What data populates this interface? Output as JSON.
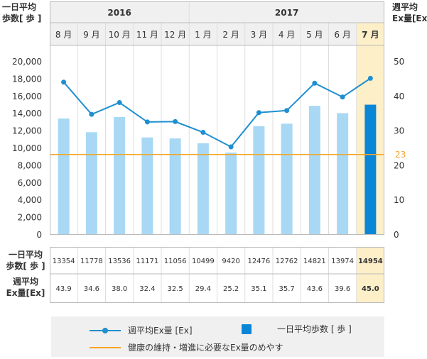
{
  "chart_data": {
    "type": "bar",
    "years": [
      {
        "label": "2016",
        "span": 5
      },
      {
        "label": "2017",
        "span": 7
      }
    ],
    "categories": [
      "8 月",
      "9 月",
      "10 月",
      "11 月",
      "12 月",
      "1 月",
      "2 月",
      "3 月",
      "4 月",
      "5 月",
      "6 月",
      "7 月"
    ],
    "highlight_index": 11,
    "left_axis": {
      "label_lines": [
        "一日平均",
        "歩数[ 歩 ]"
      ],
      "ylim": [
        0,
        20000
      ],
      "ticks": [
        "0",
        "2,000",
        "4,000",
        "6,000",
        "8,000",
        "10,000",
        "12,000",
        "14,000",
        "16,000",
        "18,000",
        "20,000"
      ]
    },
    "right_axis": {
      "label_lines": [
        "週平均",
        "Ex量[Ex]"
      ],
      "ylim": [
        0,
        50
      ],
      "ticks": [
        "0",
        "10",
        "20",
        "30",
        "40",
        "50"
      ]
    },
    "series": [
      {
        "name": "一日平均歩数 [ 歩 ]",
        "type": "bar",
        "axis": "left",
        "color": "#a8d8f4",
        "highlight_color": "#0a86d6",
        "values": [
          13354,
          11778,
          13536,
          11171,
          11056,
          10499,
          9420,
          12476,
          12762,
          14821,
          13974,
          14954
        ]
      },
      {
        "name": "週平均Ex量 [Ex]",
        "type": "line",
        "axis": "right",
        "color": "#1f8fd0",
        "values": [
          43.9,
          34.6,
          38.0,
          32.4,
          32.5,
          29.4,
          25.2,
          35.1,
          35.7,
          43.6,
          39.6,
          45.0
        ]
      }
    ],
    "target": {
      "value": 23,
      "label": "23",
      "axis": "right",
      "color": "#f5a623",
      "legend": "健康の維持・増進に必要なEx量のめやす"
    },
    "table": {
      "rows": [
        {
          "label_lines": [
            "一日平均",
            "歩数[ 歩 ]"
          ],
          "values": [
            "13354",
            "11778",
            "13536",
            "11171",
            "11056",
            "10499",
            "9420",
            "12476",
            "12762",
            "14821",
            "13974",
            "14954"
          ]
        },
        {
          "label_lines": [
            "週平均",
            "Ex量[Ex]"
          ],
          "values": [
            "43.9",
            "34.6",
            "38.0",
            "32.4",
            "32.5",
            "29.4",
            "25.2",
            "35.1",
            "35.7",
            "43.6",
            "39.6",
            "45.0"
          ]
        }
      ]
    },
    "colors": {
      "highlight_bg": "#fdefc8",
      "header_bg": "#f0f0f0",
      "border": "#bbbbbb",
      "grid": "#dddddd"
    },
    "grid": true,
    "legend_position": "bottom"
  }
}
